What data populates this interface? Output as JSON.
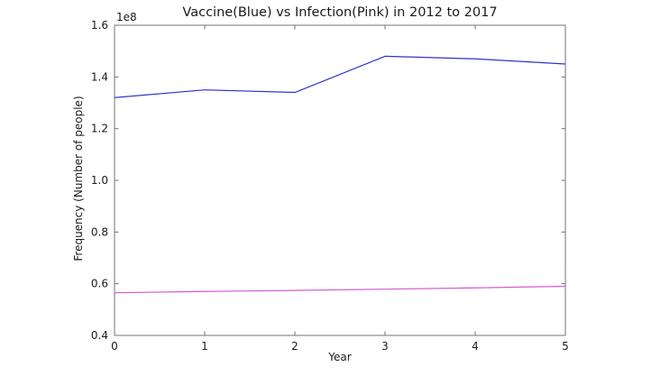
{
  "figure": {
    "background": "#ffffff",
    "spine_color": "#737373",
    "text_color": "#1a1a1a"
  },
  "chart_data": {
    "type": "line",
    "title": "Vaccine(Blue) vs Infection(Pink) in 2012 to 2017",
    "xlabel": "Year",
    "ylabel": "Frequency (Number of people)",
    "y_offset_label": "1e8",
    "y_scale": 100000000,
    "xlim": [
      0,
      5
    ],
    "ylim": [
      0.4,
      1.6
    ],
    "xticks": [
      "0",
      "1",
      "2",
      "3",
      "4",
      "5"
    ],
    "yticks": [
      "0.4",
      "0.6",
      "0.8",
      "1.0",
      "1.2",
      "1.4",
      "1.6"
    ],
    "grid": false,
    "legend_position": "none",
    "x": [
      0,
      1,
      2,
      3,
      4,
      5
    ],
    "series": [
      {
        "name": "Vaccine",
        "color_name": "blue",
        "color": "#3232cd",
        "values": [
          132000000,
          135000000,
          134000000,
          148000000,
          147000000,
          145000000
        ]
      },
      {
        "name": "Infection",
        "color_name": "pink",
        "color": "#d45ad4",
        "values": [
          56500000,
          57000000,
          57400000,
          57900000,
          58400000,
          59000000
        ]
      }
    ]
  }
}
